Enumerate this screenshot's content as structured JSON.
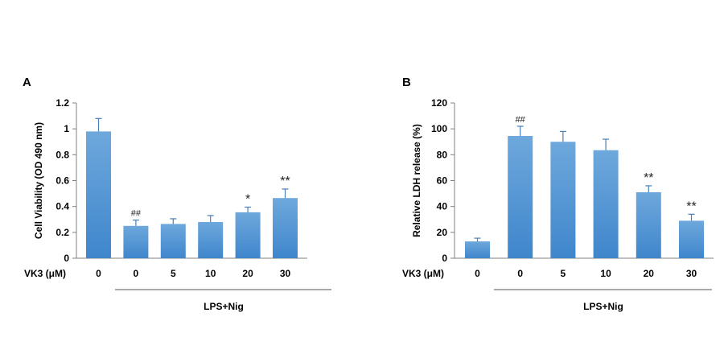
{
  "chart_data": [
    {
      "panel_label": "A",
      "type": "bar",
      "ylabel": "Cell Viability (OD 490 nm)",
      "ylim": [
        0,
        1.2
      ],
      "yticks": [
        "0",
        "0.2",
        "0.4",
        "0.6",
        "0.8",
        "1",
        "1.2"
      ],
      "ytick_values": [
        0,
        0.2,
        0.4,
        0.6,
        0.8,
        1.0,
        1.2
      ],
      "x_row_label": "VK3 (μM)",
      "categories": [
        "0",
        "0",
        "5",
        "10",
        "20",
        "30"
      ],
      "values": [
        0.98,
        0.25,
        0.265,
        0.28,
        0.355,
        0.465
      ],
      "errors": [
        0.1,
        0.045,
        0.04,
        0.05,
        0.04,
        0.07
      ],
      "annotations": [
        "",
        "##",
        "",
        "",
        "*",
        "**"
      ],
      "group_label": "LPS+Nig",
      "color": "#5b9bd5"
    },
    {
      "panel_label": "B",
      "type": "bar",
      "ylabel": "Relative LDH release (%)",
      "ylim": [
        0,
        120
      ],
      "yticks": [
        "0",
        "20",
        "40",
        "60",
        "80",
        "100",
        "120"
      ],
      "ytick_values": [
        0,
        20,
        40,
        60,
        80,
        100,
        120
      ],
      "x_row_label": "VK3 (μM)",
      "categories": [
        "0",
        "0",
        "5",
        "10",
        "20",
        "30"
      ],
      "values": [
        13,
        94.5,
        90,
        83.5,
        51,
        29
      ],
      "errors": [
        2.5,
        7.5,
        8,
        8.5,
        5,
        5
      ],
      "annotations": [
        "",
        "##",
        "",
        "",
        "**",
        "**"
      ],
      "group_label": "LPS+Nig",
      "color": "#5b9bd5"
    }
  ]
}
